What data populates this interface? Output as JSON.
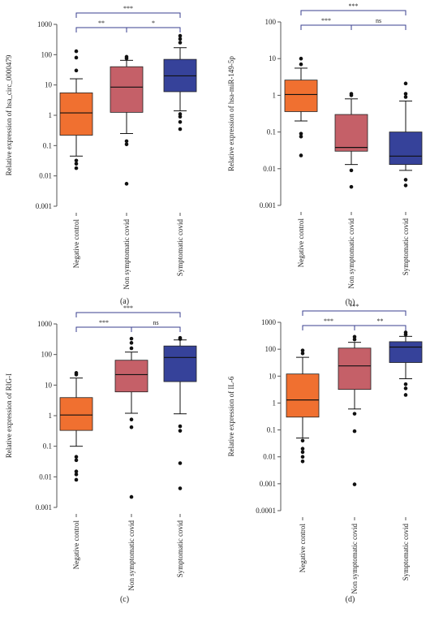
{
  "colors": {
    "negative": "#f07030",
    "non_symptomatic": "#c56068",
    "symptomatic": "#36429a",
    "bracket": "#3a3f8f",
    "axis": "#555555",
    "point": "#111111"
  },
  "chart_data": [
    {
      "type": "box",
      "panel_label": "(a)",
      "ylabel": "Relative expression of hsa_circ_0000479",
      "yscale": "log",
      "ylim": [
        0.001,
        1000
      ],
      "yticks": [
        "0.001",
        "0.01",
        "0.1",
        "1",
        "10",
        "100",
        "1000"
      ],
      "categories": [
        "Negative control",
        "Non symptomatic covid",
        "Symptomatic covid"
      ],
      "boxes": [
        {
          "q1": 0.22,
          "median": 1.2,
          "q3": 5.5,
          "whisker_low": 0.045,
          "whisker_high": 16,
          "outliers": [
            0.032,
            0.025,
            0.018,
            30,
            80,
            130
          ]
        },
        {
          "q1": 1.25,
          "median": 8.5,
          "q3": 40,
          "whisker_low": 0.25,
          "whisker_high": 65,
          "outliers": [
            0.14,
            0.11,
            0.0055,
            75,
            85
          ]
        },
        {
          "q1": 6,
          "median": 20,
          "q3": 70,
          "whisker_low": 1.4,
          "whisker_high": 170,
          "outliers": [
            1.1,
            0.9,
            0.6,
            0.35,
            250,
            330,
            420
          ]
        }
      ],
      "comparisons": [
        {
          "from": 0,
          "to": 1,
          "label": "**",
          "level": 0
        },
        {
          "from": 1,
          "to": 2,
          "label": "*",
          "level": 0
        },
        {
          "from": 0,
          "to": 2,
          "label": "***",
          "level": 1
        }
      ]
    },
    {
      "type": "box",
      "panel_label": "(b)",
      "ylabel": "Relative expression of hsa-miR-149-5p",
      "yscale": "log",
      "ylim": [
        0.001,
        100
      ],
      "yticks": [
        "0.001",
        "0.01",
        "0.1",
        "1",
        "10",
        "100"
      ],
      "categories": [
        "Negative control",
        "Non symptomatic covid",
        "Symptomatic covid"
      ],
      "boxes": [
        {
          "q1": 0.36,
          "median": 1.05,
          "q3": 2.6,
          "whisker_low": 0.2,
          "whisker_high": 5.5,
          "outliers": [
            0.09,
            0.075,
            0.023,
            7,
            10
          ]
        },
        {
          "q1": 0.03,
          "median": 0.038,
          "q3": 0.3,
          "whisker_low": 0.013,
          "whisker_high": 0.8,
          "outliers": [
            0.009,
            0.0032,
            1.0,
            1.1
          ]
        },
        {
          "q1": 0.013,
          "median": 0.022,
          "q3": 0.1,
          "whisker_low": 0.009,
          "whisker_high": 0.7,
          "outliers": [
            0.005,
            0.0035,
            0.9,
            1.1,
            2.1
          ]
        }
      ],
      "comparisons": [
        {
          "from": 0,
          "to": 1,
          "label": "***",
          "level": 0
        },
        {
          "from": 1,
          "to": 2,
          "label": "ns",
          "level": 0
        },
        {
          "from": 0,
          "to": 2,
          "label": "***",
          "level": 1
        }
      ]
    },
    {
      "type": "box",
      "panel_label": "(c)",
      "ylabel": "Relative expression of RIG-I",
      "yscale": "log",
      "ylim": [
        0.001,
        1000
      ],
      "yticks": [
        "0.001",
        "0.01",
        "0.1",
        "1",
        "10",
        "100",
        "1000"
      ],
      "categories": [
        "Negative control",
        "Non symptomatic covid",
        "Symptomatic covid"
      ],
      "boxes": [
        {
          "q1": 0.33,
          "median": 1.05,
          "q3": 3.9,
          "whisker_low": 0.1,
          "whisker_high": 17,
          "outliers": [
            0.045,
            0.035,
            0.015,
            0.012,
            0.008,
            22,
            25
          ]
        },
        {
          "q1": 6,
          "median": 22,
          "q3": 65,
          "whisker_low": 1.2,
          "whisker_high": 120,
          "outliers": [
            0.75,
            0.42,
            0.0022,
            160,
            240,
            330
          ]
        },
        {
          "q1": 13,
          "median": 80,
          "q3": 190,
          "whisker_low": 1.15,
          "whisker_high": 300,
          "outliers": [
            0.45,
            0.32,
            0.028,
            0.0042,
            320,
            350
          ]
        }
      ],
      "comparisons": [
        {
          "from": 0,
          "to": 1,
          "label": "***",
          "level": 0
        },
        {
          "from": 1,
          "to": 2,
          "label": "ns",
          "level": 0
        },
        {
          "from": 0,
          "to": 2,
          "label": "***",
          "level": 1
        }
      ]
    },
    {
      "type": "box",
      "panel_label": "(d)",
      "ylabel": "Relative expression of IL-6",
      "yscale": "log",
      "ylim": [
        0.0001,
        1000
      ],
      "yticks": [
        "0.0001",
        "0.001",
        "0.01",
        "0.1",
        "1",
        "10",
        "100",
        "1000"
      ],
      "categories": [
        "Negative control",
        "Non symptomatic covid",
        "Symptomatic covid"
      ],
      "boxes": [
        {
          "q1": 0.3,
          "median": 1.3,
          "q3": 12,
          "whisker_low": 0.05,
          "whisker_high": 50,
          "outliers": [
            0.04,
            0.02,
            0.015,
            0.01,
            0.0068,
            70,
            90
          ]
        },
        {
          "q1": 3.2,
          "median": 24,
          "q3": 110,
          "whisker_low": 0.6,
          "whisker_high": 180,
          "outliers": [
            0.4,
            0.09,
            0.00095,
            230,
            290
          ]
        },
        {
          "q1": 32,
          "median": 120,
          "q3": 190,
          "whisker_low": 8,
          "whisker_high": 300,
          "outliers": [
            5,
            3.5,
            2,
            350,
            420
          ]
        }
      ],
      "comparisons": [
        {
          "from": 0,
          "to": 1,
          "label": "***",
          "level": 0
        },
        {
          "from": 1,
          "to": 2,
          "label": "**",
          "level": 0
        },
        {
          "from": 0,
          "to": 2,
          "label": "***",
          "level": 1
        }
      ]
    }
  ]
}
